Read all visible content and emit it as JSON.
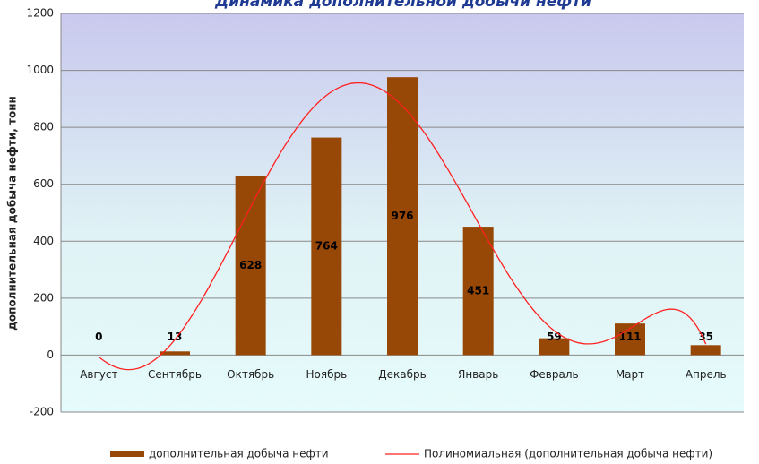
{
  "chart_data": {
    "type": "bar",
    "title": "Динамика дополнительной добычи нефти",
    "y_label": "дополнительная добыча нефти, тонн",
    "categories": [
      "Август",
      "Сентябрь",
      "Октябрь",
      "Ноябрь",
      "Декабрь",
      "Январь",
      "Февраль",
      "Март",
      "Апрель"
    ],
    "series": [
      {
        "name": "дополнительная добыча нефти",
        "color": "#974706",
        "values": [
          0,
          13,
          628,
          764,
          976,
          451,
          59,
          111,
          35
        ]
      }
    ],
    "trendline": {
      "name": "Полиномиальная (дополнительная добыча нефти)",
      "color": "#ff2020",
      "degree": 6
    },
    "ylim": [
      -200,
      1200
    ],
    "yticks": [
      -200,
      0,
      200,
      400,
      600,
      800,
      1000,
      1200
    ],
    "grid": true
  }
}
